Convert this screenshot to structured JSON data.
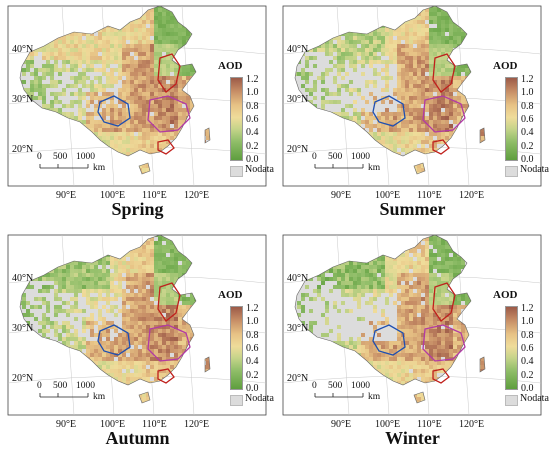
{
  "panels": [
    {
      "season": "Spring",
      "seed": 1,
      "nodata": 0.18,
      "bias": 0.55
    },
    {
      "season": "Summer",
      "seed": 2,
      "nodata": 0.3,
      "bias": 0.35
    },
    {
      "season": "Autumn",
      "seed": 3,
      "nodata": 0.22,
      "bias": 0.25
    },
    {
      "season": "Winter",
      "seed": 4,
      "nodata": 0.35,
      "bias": 0.2
    }
  ],
  "legend": {
    "title": "AOD",
    "ticks": [
      "1.2",
      "1.0",
      "0.8",
      "0.6",
      "0.4",
      "0.2",
      "0.0"
    ],
    "nodata_label": "Nodata"
  },
  "lat_labels": [
    "40°N",
    "30°N",
    "20°N"
  ],
  "lon_labels": [
    "90°E",
    "100°E",
    "110°E",
    "120°E"
  ],
  "scalebar": {
    "ticks": [
      "0",
      "500",
      "1000"
    ],
    "unit": "km"
  },
  "colors": {
    "nodata": "#dcdcdc",
    "high": "#9c5a48",
    "mid": "#efdc9a",
    "low": "#5e9e3e",
    "outline_red": "#c0201c",
    "outline_blue": "#1f4fb0",
    "outline_purple": "#b23aa5"
  }
}
